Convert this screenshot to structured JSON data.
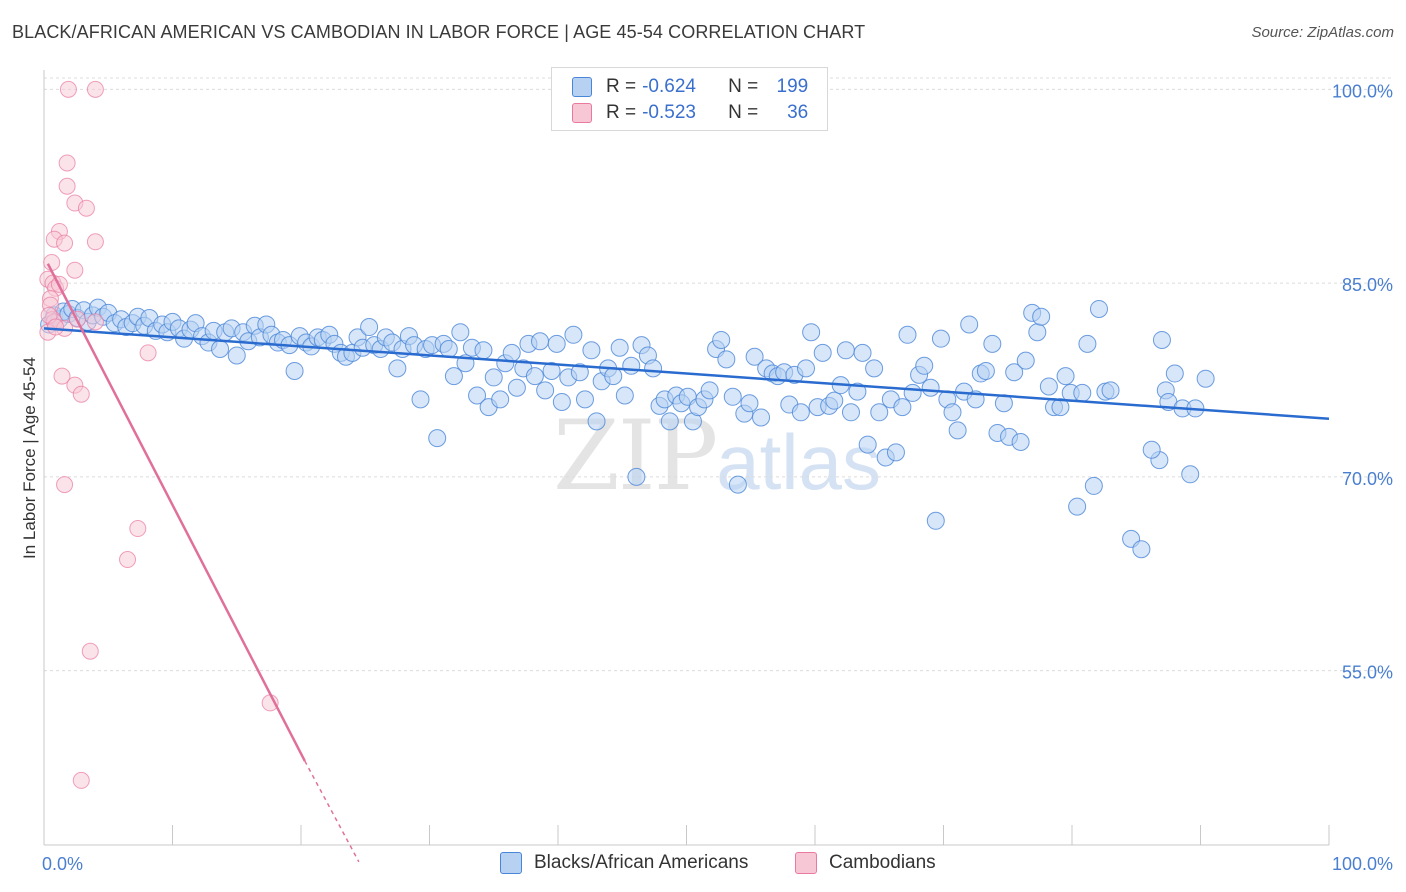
{
  "title": "BLACK/AFRICAN AMERICAN VS CAMBODIAN IN LABOR FORCE | AGE 45-54 CORRELATION CHART",
  "source": "Source: ZipAtlas.com",
  "watermark": {
    "zip": "ZIP",
    "atlas": "atlas"
  },
  "colors": {
    "blue": "#4a86d8",
    "blue_fill": "#b7d1f3",
    "blue_line": "#2a6bd0",
    "pink": "#e9799f",
    "pink_fill": "#f7c7d6",
    "pink_line": "#e0709a",
    "tick_text": "#4a7fd0",
    "grid": "#dcdcdc"
  },
  "legend": {
    "rows": [
      {
        "r_label": "R =",
        "r_value": "-0.624",
        "n_label": "N =",
        "n_value": "199",
        "color": "#b7d1f3",
        "border": "#4a86d8"
      },
      {
        "r_label": "R =",
        "r_value": "-0.523",
        "n_label": "N =",
        "n_value": "36",
        "color": "#f7c7d6",
        "border": "#e9799f"
      }
    ]
  },
  "bottom_legend": [
    {
      "label": "Blacks/African Americans",
      "color": "#b7d1f3",
      "border": "#4a86d8"
    },
    {
      "label": "Cambodians",
      "color": "#f7c7d6",
      "border": "#e9799f"
    }
  ],
  "chart_data": {
    "type": "scatter",
    "title": "BLACK/AFRICAN AMERICAN VS CAMBODIAN IN LABOR FORCE | AGE 45-54 CORRELATION CHART",
    "xlabel": "",
    "ylabel": "In Labor Force | Age 45-54",
    "xlim": [
      0,
      100
    ],
    "ylim": [
      41.5,
      101.5
    ],
    "x_tick_labels": [
      "0.0%",
      "100.0%"
    ],
    "y_ticks": [
      55,
      70,
      85,
      100
    ],
    "y_tick_labels": [
      "55.0%",
      "70.0%",
      "85.0%",
      "100.0%"
    ],
    "grid": true,
    "legend_position": "top-center",
    "series": [
      {
        "name": "Blacks/African Americans",
        "color": "#4a86d8",
        "trend": [
          [
            0,
            81.5
          ],
          [
            100,
            74.5
          ]
        ],
        "points": [
          [
            0.4,
            81.8
          ],
          [
            0.8,
            82.5
          ],
          [
            1.2,
            82.2
          ],
          [
            1.5,
            82.8
          ],
          [
            1.9,
            82.6
          ],
          [
            2.2,
            83.0
          ],
          [
            2.6,
            82.3
          ],
          [
            3.1,
            82.9
          ],
          [
            3.4,
            82.0
          ],
          [
            3.8,
            82.5
          ],
          [
            4.2,
            83.1
          ],
          [
            4.6,
            82.4
          ],
          [
            5.0,
            82.7
          ],
          [
            5.5,
            81.9
          ],
          [
            6.0,
            82.2
          ],
          [
            6.4,
            81.6
          ],
          [
            6.9,
            81.9
          ],
          [
            7.3,
            82.4
          ],
          [
            7.8,
            81.7
          ],
          [
            8.2,
            82.3
          ],
          [
            8.7,
            81.3
          ],
          [
            9.2,
            81.8
          ],
          [
            9.6,
            81.2
          ],
          [
            10.0,
            82.0
          ],
          [
            10.5,
            81.5
          ],
          [
            10.9,
            80.7
          ],
          [
            11.4,
            81.4
          ],
          [
            11.8,
            81.9
          ],
          [
            12.3,
            80.9
          ],
          [
            12.8,
            80.4
          ],
          [
            13.2,
            81.3
          ],
          [
            13.7,
            79.9
          ],
          [
            14.1,
            81.2
          ],
          [
            14.6,
            81.5
          ],
          [
            15.0,
            79.4
          ],
          [
            15.5,
            81.2
          ],
          [
            15.9,
            80.5
          ],
          [
            16.4,
            81.7
          ],
          [
            16.8,
            80.8
          ],
          [
            17.3,
            81.8
          ],
          [
            17.7,
            81.0
          ],
          [
            18.2,
            80.4
          ],
          [
            18.6,
            80.6
          ],
          [
            19.1,
            80.2
          ],
          [
            19.5,
            78.2
          ],
          [
            19.9,
            80.9
          ],
          [
            20.4,
            80.4
          ],
          [
            20.8,
            80.1
          ],
          [
            21.3,
            80.8
          ],
          [
            21.7,
            80.6
          ],
          [
            22.2,
            81.0
          ],
          [
            22.6,
            80.3
          ],
          [
            23.1,
            79.6
          ],
          [
            23.5,
            79.3
          ],
          [
            24.0,
            79.6
          ],
          [
            24.4,
            80.8
          ],
          [
            24.8,
            80.0
          ],
          [
            25.3,
            81.6
          ],
          [
            25.7,
            80.2
          ],
          [
            26.2,
            79.9
          ],
          [
            26.6,
            80.8
          ],
          [
            27.1,
            80.4
          ],
          [
            27.5,
            78.4
          ],
          [
            27.9,
            79.9
          ],
          [
            28.4,
            80.9
          ],
          [
            28.8,
            80.2
          ],
          [
            29.3,
            76.0
          ],
          [
            29.7,
            79.9
          ],
          [
            30.2,
            80.2
          ],
          [
            30.6,
            73.0
          ],
          [
            31.1,
            80.3
          ],
          [
            31.5,
            79.9
          ],
          [
            31.9,
            77.8
          ],
          [
            32.4,
            81.2
          ],
          [
            32.8,
            78.8
          ],
          [
            33.3,
            80.0
          ],
          [
            33.7,
            76.3
          ],
          [
            34.2,
            79.8
          ],
          [
            34.6,
            75.4
          ],
          [
            35.0,
            77.7
          ],
          [
            35.5,
            76.0
          ],
          [
            35.9,
            78.8
          ],
          [
            36.4,
            79.6
          ],
          [
            36.8,
            76.9
          ],
          [
            37.3,
            78.4
          ],
          [
            37.7,
            80.3
          ],
          [
            38.2,
            77.8
          ],
          [
            38.6,
            80.5
          ],
          [
            39.0,
            76.7
          ],
          [
            39.5,
            78.2
          ],
          [
            39.9,
            80.3
          ],
          [
            40.3,
            75.8
          ],
          [
            40.8,
            77.7
          ],
          [
            41.2,
            81.0
          ],
          [
            41.7,
            78.1
          ],
          [
            42.1,
            76.0
          ],
          [
            42.6,
            79.8
          ],
          [
            43.0,
            74.3
          ],
          [
            43.4,
            77.4
          ],
          [
            43.9,
            78.4
          ],
          [
            44.3,
            77.8
          ],
          [
            44.8,
            80.0
          ],
          [
            45.2,
            76.3
          ],
          [
            45.7,
            78.6
          ],
          [
            46.1,
            70.0
          ],
          [
            46.5,
            80.2
          ],
          [
            47.0,
            79.4
          ],
          [
            47.4,
            78.4
          ],
          [
            47.9,
            75.5
          ],
          [
            48.3,
            76.0
          ],
          [
            48.7,
            74.3
          ],
          [
            49.2,
            76.3
          ],
          [
            49.6,
            75.7
          ],
          [
            50.1,
            76.2
          ],
          [
            50.5,
            74.3
          ],
          [
            50.9,
            75.4
          ],
          [
            51.4,
            76.0
          ],
          [
            51.8,
            76.7
          ],
          [
            52.3,
            79.9
          ],
          [
            52.7,
            80.6
          ],
          [
            53.1,
            79.1
          ],
          [
            53.6,
            76.2
          ],
          [
            54.0,
            69.4
          ],
          [
            54.5,
            74.9
          ],
          [
            54.9,
            75.7
          ],
          [
            55.3,
            79.3
          ],
          [
            55.8,
            74.6
          ],
          [
            56.2,
            78.4
          ],
          [
            56.7,
            78.0
          ],
          [
            57.1,
            77.8
          ],
          [
            57.6,
            78.1
          ],
          [
            58.0,
            75.6
          ],
          [
            58.4,
            77.9
          ],
          [
            58.9,
            75.0
          ],
          [
            59.3,
            78.4
          ],
          [
            59.7,
            81.2
          ],
          [
            60.2,
            75.4
          ],
          [
            60.6,
            79.6
          ],
          [
            61.1,
            75.5
          ],
          [
            61.5,
            75.9
          ],
          [
            62.0,
            77.1
          ],
          [
            62.4,
            79.8
          ],
          [
            62.8,
            75.0
          ],
          [
            63.3,
            76.6
          ],
          [
            63.7,
            79.6
          ],
          [
            64.1,
            72.5
          ],
          [
            64.6,
            78.4
          ],
          [
            65.0,
            75.0
          ],
          [
            65.5,
            71.5
          ],
          [
            65.9,
            76.0
          ],
          [
            66.3,
            71.9
          ],
          [
            66.8,
            75.4
          ],
          [
            67.2,
            81.0
          ],
          [
            67.6,
            76.5
          ],
          [
            68.1,
            77.9
          ],
          [
            68.5,
            78.6
          ],
          [
            69.0,
            76.9
          ],
          [
            69.4,
            66.6
          ],
          [
            69.8,
            80.7
          ],
          [
            70.3,
            76.0
          ],
          [
            70.7,
            75.0
          ],
          [
            71.1,
            73.6
          ],
          [
            71.6,
            76.6
          ],
          [
            72.0,
            81.8
          ],
          [
            72.5,
            76.0
          ],
          [
            72.9,
            78.0
          ],
          [
            73.3,
            78.2
          ],
          [
            73.8,
            80.3
          ],
          [
            74.2,
            73.4
          ],
          [
            74.7,
            75.7
          ],
          [
            75.1,
            73.1
          ],
          [
            75.5,
            78.1
          ],
          [
            76.0,
            72.7
          ],
          [
            76.4,
            79.0
          ],
          [
            86.8,
            71.3
          ],
          [
            87.3,
            76.7
          ],
          [
            76.9,
            82.7
          ],
          [
            77.3,
            81.2
          ],
          [
            77.6,
            82.4
          ],
          [
            78.2,
            77.0
          ],
          [
            78.6,
            75.4
          ],
          [
            79.1,
            75.4
          ],
          [
            79.5,
            77.8
          ],
          [
            79.9,
            76.5
          ],
          [
            80.4,
            67.7
          ],
          [
            80.8,
            76.5
          ],
          [
            81.2,
            80.3
          ],
          [
            81.7,
            69.3
          ],
          [
            82.1,
            83.0
          ],
          [
            82.6,
            76.6
          ],
          [
            83.0,
            76.7
          ],
          [
            84.6,
            65.2
          ],
          [
            85.4,
            64.4
          ],
          [
            86.2,
            72.1
          ],
          [
            87.0,
            80.6
          ],
          [
            87.5,
            75.8
          ],
          [
            88.0,
            78.0
          ],
          [
            88.6,
            75.3
          ],
          [
            89.2,
            70.2
          ],
          [
            89.6,
            75.3
          ],
          [
            90.4,
            77.6
          ]
        ]
      },
      {
        "name": "Cambodians",
        "color": "#e9799f",
        "trend_solid": [
          [
            0.3,
            86.5
          ],
          [
            20.3,
            48.0
          ]
        ],
        "trend_dashed": [
          [
            20.3,
            48.0
          ],
          [
            24.5,
            40.2
          ]
        ],
        "points": [
          [
            1.9,
            100.0
          ],
          [
            4.0,
            100.0
          ],
          [
            1.8,
            94.3
          ],
          [
            1.8,
            92.5
          ],
          [
            2.4,
            91.2
          ],
          [
            3.3,
            90.8
          ],
          [
            1.2,
            89.0
          ],
          [
            0.8,
            88.4
          ],
          [
            1.6,
            88.1
          ],
          [
            4.0,
            88.2
          ],
          [
            0.6,
            86.6
          ],
          [
            2.4,
            86.0
          ],
          [
            0.3,
            85.3
          ],
          [
            0.7,
            85.0
          ],
          [
            0.9,
            84.6
          ],
          [
            1.2,
            84.9
          ],
          [
            0.5,
            83.8
          ],
          [
            0.5,
            83.3
          ],
          [
            0.7,
            82.2
          ],
          [
            0.8,
            82.0
          ],
          [
            1.6,
            81.5
          ],
          [
            2.6,
            82.2
          ],
          [
            4.0,
            82.0
          ],
          [
            0.3,
            81.2
          ],
          [
            1.4,
            77.8
          ],
          [
            2.4,
            77.1
          ],
          [
            2.9,
            76.4
          ],
          [
            1.6,
            69.4
          ],
          [
            7.3,
            66.0
          ],
          [
            8.1,
            79.6
          ],
          [
            6.5,
            63.6
          ],
          [
            3.6,
            56.5
          ],
          [
            17.6,
            52.5
          ],
          [
            2.9,
            46.5
          ],
          [
            0.4,
            82.5
          ],
          [
            0.9,
            81.6
          ]
        ]
      }
    ]
  }
}
